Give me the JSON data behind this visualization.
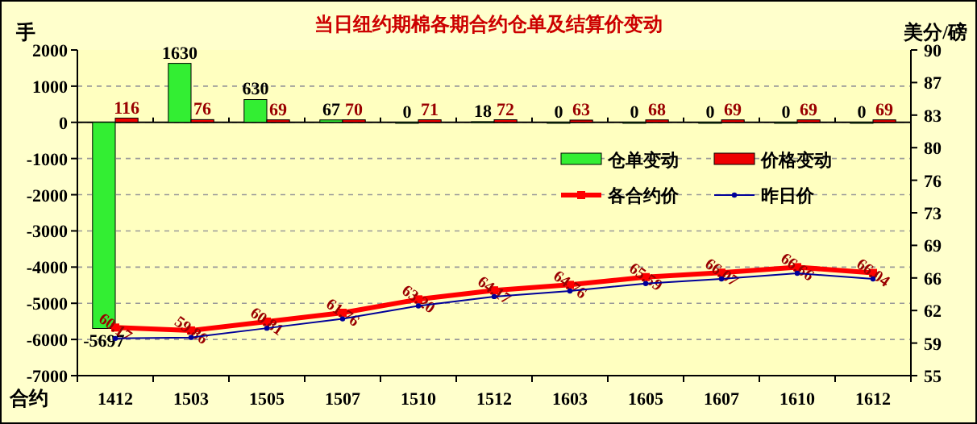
{
  "chart_data": {
    "type": "bar",
    "title": "当日纽约期棉各期合约仓单及结算价变动",
    "xlabel": "合约",
    "ylabel": "手",
    "y2label": "美分/磅",
    "categories": [
      "1412",
      "1503",
      "1505",
      "1507",
      "1510",
      "1512",
      "1603",
      "1605",
      "1607",
      "1610",
      "1612"
    ],
    "series": [
      {
        "name": "仓单变动",
        "color": "#33ee33",
        "values": [
          -5697,
          1630,
          630,
          67,
          0,
          18,
          0,
          0,
          0,
          0,
          0
        ],
        "data_labels": true
      },
      {
        "name": "价格变动",
        "color": "#ee0000",
        "values": [
          116,
          76,
          69,
          70,
          71,
          72,
          63,
          68,
          69,
          69,
          69
        ],
        "data_labels": true
      },
      {
        "name": "各合约价",
        "type": "line",
        "axis": "y2",
        "color": "#ff0000",
        "marker": "square",
        "values": [
          60.17,
          59.86,
          60.81,
          61.76,
          63.2,
          64.17,
          64.76,
          65.59,
          66.07,
          66.66,
          66.04
        ],
        "value_labels": [
          "60.17",
          "59.86",
          "60.81",
          "61.76",
          "63.20",
          "64.17",
          "64.76",
          "65.59",
          "66.07",
          "66.66",
          "66.04"
        ]
      },
      {
        "name": "昨日价",
        "type": "line",
        "axis": "y2",
        "color": "#000099",
        "marker": "circle",
        "values": [
          59.0,
          59.1,
          60.1,
          61.1,
          62.5,
          63.5,
          64.1,
          64.9,
          65.4,
          66.0,
          65.4
        ]
      }
    ],
    "ylim": [
      -7000,
      2000
    ],
    "yticks": [
      -7000,
      -6000,
      -5000,
      -4000,
      -3000,
      -2000,
      -1000,
      0,
      1000,
      2000
    ],
    "y2lim": [
      55,
      90
    ],
    "y2ticks": [
      55,
      {
        "value": 58.5,
        "label": "59"
      },
      62,
      {
        "value": 65.5,
        "label": "66"
      },
      69,
      {
        "value": 72.5,
        "label": "73"
      },
      76,
      {
        "value": 79.5,
        "label": "80"
      },
      83,
      {
        "value": 86.5,
        "label": "87"
      },
      90
    ],
    "grid": "y",
    "legend": "right"
  }
}
